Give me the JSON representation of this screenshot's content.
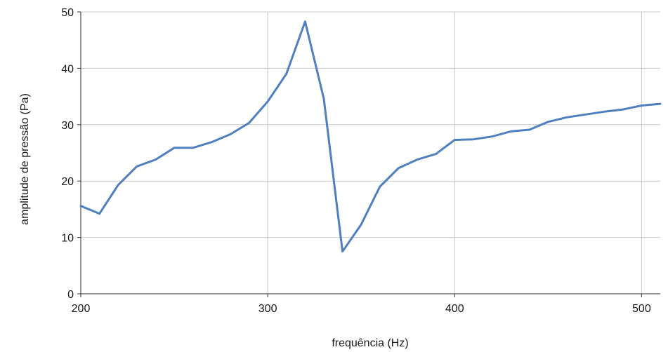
{
  "chart_data": {
    "type": "line",
    "xlabel": "frequência (Hz)",
    "ylabel": "amplitude de pressão (Pa)",
    "xlim": [
      200,
      510
    ],
    "ylim": [
      0,
      50
    ],
    "x_ticks": [
      200,
      300,
      400,
      500
    ],
    "y_ticks": [
      0,
      10,
      20,
      30,
      40,
      50
    ],
    "grid": true,
    "color": "#4f7fbf",
    "series": [
      {
        "x": [
          200,
          210,
          220,
          230,
          240,
          250,
          260,
          270,
          280,
          290,
          300,
          310,
          320,
          330,
          340,
          350,
          360,
          370,
          380,
          390,
          400,
          410,
          420,
          430,
          440,
          450,
          460,
          470,
          480,
          490,
          500,
          510
        ],
        "y": [
          15.6,
          14.2,
          19.3,
          22.6,
          23.8,
          25.9,
          25.9,
          26.9,
          28.3,
          30.3,
          34.1,
          39.0,
          48.3,
          34.6,
          7.5,
          12.3,
          19.0,
          22.3,
          23.8,
          24.8,
          27.3,
          27.4,
          27.9,
          28.8,
          29.1,
          30.5,
          31.3,
          31.8,
          32.3,
          32.7,
          33.4,
          33.7
        ]
      }
    ]
  }
}
